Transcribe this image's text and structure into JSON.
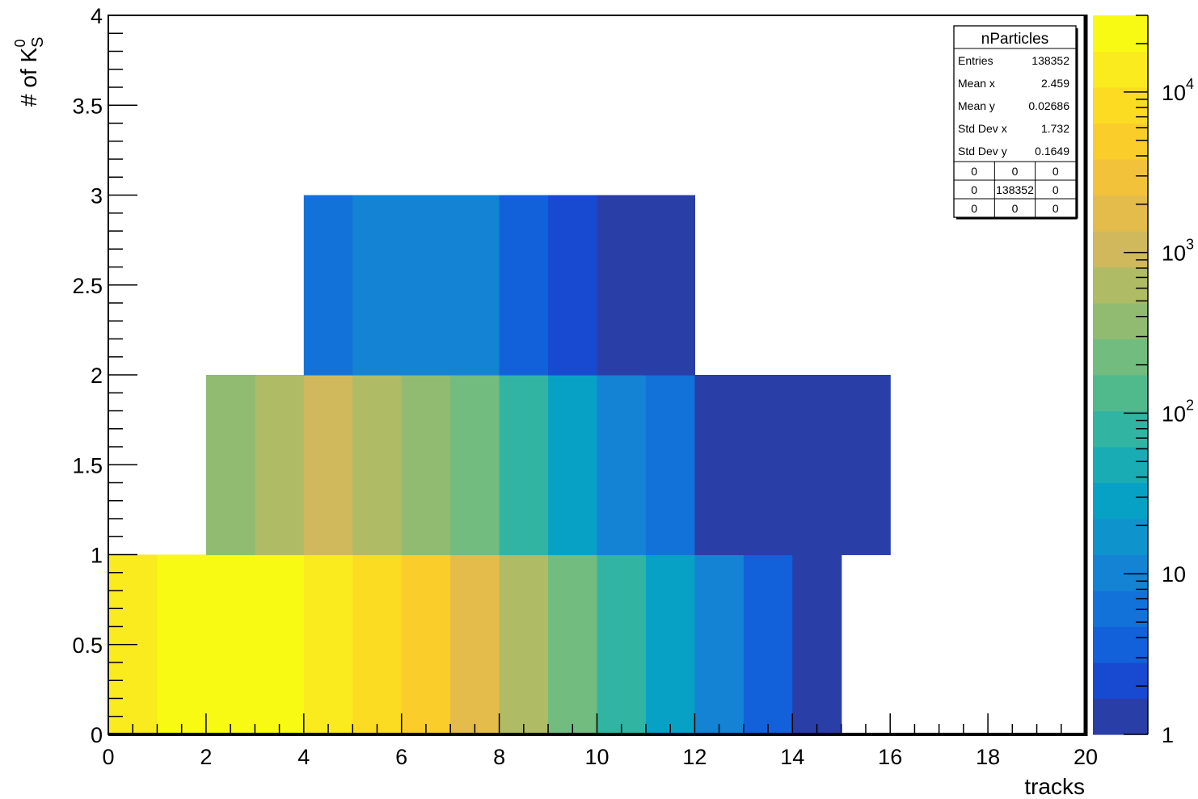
{
  "chart_data": {
    "type": "heatmap",
    "xlabel": "tracks",
    "ylabel_parts": {
      "base": "# of K",
      "sub": "S",
      "sup": "0"
    },
    "xlim": [
      0,
      20
    ],
    "ylim": [
      0,
      4
    ],
    "x_ticks": [
      0,
      2,
      4,
      6,
      8,
      10,
      12,
      14,
      16,
      18,
      20
    ],
    "y_ticks": [
      0,
      0.5,
      1,
      1.5,
      2,
      2.5,
      3,
      3.5,
      4
    ],
    "x_tick_labels": [
      "0",
      "2",
      "4",
      "6",
      "8",
      "10",
      "12",
      "14",
      "16",
      "18",
      "20"
    ],
    "y_tick_labels": [
      "0",
      "0.5",
      "1",
      "1.5",
      "2",
      "2.5",
      "3",
      "3.5",
      "4"
    ],
    "z_scale": "log",
    "zlim": [
      1,
      30000
    ],
    "colorbar_labels": [
      {
        "value": 1,
        "base": "1",
        "exp": ""
      },
      {
        "value": 10,
        "base": "10",
        "exp": ""
      },
      {
        "value": 100,
        "base": "10",
        "exp": "2"
      },
      {
        "value": 1000,
        "base": "10",
        "exp": "3"
      },
      {
        "value": 10000,
        "base": "10",
        "exp": "4"
      }
    ],
    "palette": [
      "#2a3ea7",
      "#1849d1",
      "#1261da",
      "#1372d9",
      "#1483d3",
      "#0f93cd",
      "#08a1c6",
      "#1aacb4",
      "#31b5a2",
      "#51ba8d",
      "#71bc7e",
      "#91bb71",
      "#b0bb66",
      "#cfb95c",
      "#e4bc4c",
      "#f3c23b",
      "#fbcd2b",
      "#fbdc22",
      "#f9eb1d",
      "#f9fa14"
    ],
    "bins": [
      {
        "x": [
          0,
          1
        ],
        "y": [
          0,
          1
        ],
        "value": 15000
      },
      {
        "x": [
          1,
          2
        ],
        "y": [
          0,
          1
        ],
        "value": 28000
      },
      {
        "x": [
          2,
          3
        ],
        "y": [
          0,
          1
        ],
        "value": 28000
      },
      {
        "x": [
          3,
          4
        ],
        "y": [
          0,
          1
        ],
        "value": 28000
      },
      {
        "x": [
          4,
          5
        ],
        "y": [
          0,
          1
        ],
        "value": 12000
      },
      {
        "x": [
          5,
          6
        ],
        "y": [
          0,
          1
        ],
        "value": 7000
      },
      {
        "x": [
          6,
          7
        ],
        "y": [
          0,
          1
        ],
        "value": 4500
      },
      {
        "x": [
          7,
          8
        ],
        "y": [
          0,
          1
        ],
        "value": 2200
      },
      {
        "x": [
          8,
          9
        ],
        "y": [
          0,
          1
        ],
        "value": 800
      },
      {
        "x": [
          9,
          10
        ],
        "y": [
          0,
          1
        ],
        "value": 250
      },
      {
        "x": [
          10,
          11
        ],
        "y": [
          0,
          1
        ],
        "value": 90
      },
      {
        "x": [
          11,
          12
        ],
        "y": [
          0,
          1
        ],
        "value": 30
      },
      {
        "x": [
          12,
          13
        ],
        "y": [
          0,
          1
        ],
        "value": 8
      },
      {
        "x": [
          13,
          14
        ],
        "y": [
          0,
          1
        ],
        "value": 3
      },
      {
        "x": [
          14,
          15
        ],
        "y": [
          0,
          1
        ],
        "value": 1
      },
      {
        "x": [
          2,
          3
        ],
        "y": [
          1,
          2
        ],
        "value": 350
      },
      {
        "x": [
          3,
          4
        ],
        "y": [
          1,
          2
        ],
        "value": 600
      },
      {
        "x": [
          4,
          5
        ],
        "y": [
          1,
          2
        ],
        "value": 1100
      },
      {
        "x": [
          5,
          6
        ],
        "y": [
          1,
          2
        ],
        "value": 650
      },
      {
        "x": [
          6,
          7
        ],
        "y": [
          1,
          2
        ],
        "value": 350
      },
      {
        "x": [
          7,
          8
        ],
        "y": [
          1,
          2
        ],
        "value": 200
      },
      {
        "x": [
          8,
          9
        ],
        "y": [
          1,
          2
        ],
        "value": 100
      },
      {
        "x": [
          9,
          10
        ],
        "y": [
          1,
          2
        ],
        "value": 35
      },
      {
        "x": [
          10,
          11
        ],
        "y": [
          1,
          2
        ],
        "value": 12
      },
      {
        "x": [
          11,
          12
        ],
        "y": [
          1,
          2
        ],
        "value": 6
      },
      {
        "x": [
          12,
          13
        ],
        "y": [
          1,
          2
        ],
        "value": 1
      },
      {
        "x": [
          13,
          14
        ],
        "y": [
          1,
          2
        ],
        "value": 1
      },
      {
        "x": [
          14,
          15
        ],
        "y": [
          1,
          2
        ],
        "value": 1
      },
      {
        "x": [
          15,
          16
        ],
        "y": [
          1,
          2
        ],
        "value": 1
      },
      {
        "x": [
          4,
          5
        ],
        "y": [
          2,
          3
        ],
        "value": 6
      },
      {
        "x": [
          5,
          6
        ],
        "y": [
          2,
          3
        ],
        "value": 12
      },
      {
        "x": [
          6,
          7
        ],
        "y": [
          2,
          3
        ],
        "value": 12
      },
      {
        "x": [
          7,
          8
        ],
        "y": [
          2,
          3
        ],
        "value": 12
      },
      {
        "x": [
          8,
          9
        ],
        "y": [
          2,
          3
        ],
        "value": 4
      },
      {
        "x": [
          9,
          10
        ],
        "y": [
          2,
          3
        ],
        "value": 2.5
      },
      {
        "x": [
          10,
          11
        ],
        "y": [
          2,
          3
        ],
        "value": 1
      },
      {
        "x": [
          11,
          12
        ],
        "y": [
          2,
          3
        ],
        "value": 1
      }
    ],
    "stats_box": {
      "title": "nParticles",
      "rows": [
        {
          "label": "Entries",
          "value": "138352"
        },
        {
          "label": "Mean x",
          "value": "2.459"
        },
        {
          "label": "Mean y",
          "value": "0.02686"
        },
        {
          "label": "Std Dev x",
          "value": "1.732"
        },
        {
          "label": "Std Dev y",
          "value": "0.1649"
        }
      ],
      "grid": [
        [
          "0",
          "0",
          "0"
        ],
        [
          "0",
          "138352",
          "0"
        ],
        [
          "0",
          "0",
          "0"
        ]
      ]
    }
  }
}
